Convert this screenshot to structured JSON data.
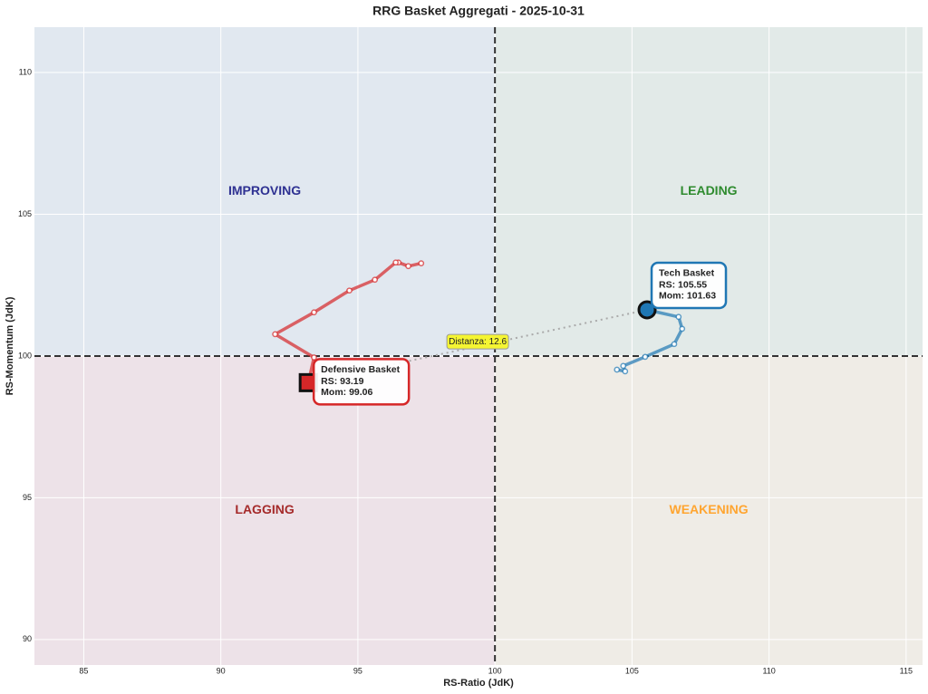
{
  "chart_data": {
    "type": "line",
    "title": "RRG Basket Aggregati - 2025-10-31",
    "x_label": "RS-Ratio (JdK)",
    "y_label": "RS-Momentum (JdK)",
    "xlim": [
      83.2,
      115.6
    ],
    "ylim": [
      89.1,
      111.6
    ],
    "xticks": [
      85,
      90,
      95,
      100,
      105,
      110,
      115
    ],
    "yticks": [
      90,
      95,
      100,
      105,
      110
    ],
    "grid": true,
    "reference": {
      "x": 100,
      "y": 100
    },
    "quadrants": [
      {
        "label": "IMPROVING",
        "color": "#2e3192",
        "background": "#e1e8f0"
      },
      {
        "label": "LEADING",
        "color": "#2e8b2e",
        "background": "#e2eae8"
      },
      {
        "label": "LAGGING",
        "color": "#a52a2a",
        "background": "#ede2e8"
      },
      {
        "label": "WEAKENING",
        "color": "#ffa530",
        "background": "#efece6"
      }
    ],
    "distance_label": "Distanza: 12.6",
    "series": [
      {
        "name": "Defensive Basket",
        "color": "#d62728",
        "marker": "square",
        "x": [
          97.31,
          96.84,
          96.48,
          96.38,
          95.62,
          94.69,
          93.4,
          91.98,
          93.4,
          93.19
        ],
        "values": [
          103.27,
          103.17,
          103.3,
          103.3,
          102.69,
          102.31,
          101.54,
          100.77,
          99.95,
          99.06
        ],
        "annotation": [
          "RS: 93.19",
          "Mom: 99.06"
        ]
      },
      {
        "name": "Tech Basket",
        "color": "#1f77b4",
        "marker": "circle",
        "x": [
          104.45,
          104.75,
          104.68,
          105.48,
          106.54,
          106.83,
          106.7,
          105.55
        ],
        "values": [
          99.52,
          99.46,
          99.65,
          99.97,
          100.42,
          100.96,
          101.38,
          101.63
        ],
        "annotation": [
          "RS: 105.55",
          "Mom: 101.63"
        ]
      }
    ]
  }
}
